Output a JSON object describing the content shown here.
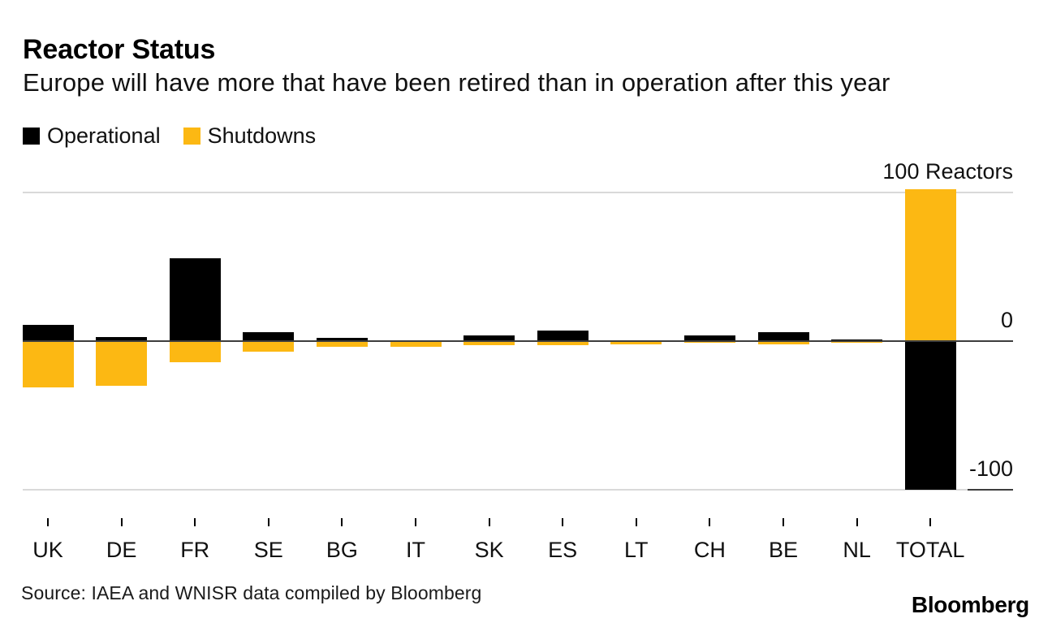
{
  "title": "Reactor Status",
  "subtitle": "Europe will have more that have been retired than in operation after this year",
  "legend": [
    {
      "label": "Operational",
      "color": "#000000"
    },
    {
      "label": "Shutdowns",
      "color": "#FCB813"
    }
  ],
  "source": "Source: IAEA and WNISR data compiled by Bloomberg",
  "logo": "Bloomberg",
  "colors": {
    "operational": "#000000",
    "shutdowns": "#FCB813",
    "gridline_light": "#D9D9D9",
    "gridline_dark": "#3D3D3D",
    "background": "#FFFFFF"
  },
  "chart_data": {
    "type": "bar",
    "layout": "diverging vertical bars around a zero line; for country columns Operational is drawn above zero and Shutdowns below; the TOTAL column is inverted (Shutdowns above, Operational below)",
    "title": "Reactor Status",
    "subtitle": "Europe will have more that have been retired than in operation after this year",
    "unit_label": "Reactors",
    "categories": [
      "UK",
      "DE",
      "FR",
      "SE",
      "BG",
      "IT",
      "SK",
      "ES",
      "LT",
      "CH",
      "BE",
      "NL",
      "TOTAL"
    ],
    "series": [
      {
        "name": "Operational",
        "color": "#000000",
        "values": [
          11,
          3,
          56,
          6,
          2,
          0,
          4,
          7,
          0,
          4,
          6,
          1,
          -100
        ],
        "sign_convention": "positive = bar drawn upward from zero, negative = drawn downward; TOTAL operational (~100) is drawn downward"
      },
      {
        "name": "Shutdowns",
        "color": "#FCB813",
        "values": [
          -31,
          -30,
          -14,
          -7,
          -4,
          -4,
          -3,
          -3,
          -2,
          -1,
          -2,
          -1,
          102
        ],
        "sign_convention": "positive = bar drawn upward from zero, negative = drawn downward; TOTAL shutdowns (~102) is drawn upward"
      }
    ],
    "yticks": [
      {
        "value": 100,
        "label": "100 Reactors",
        "line": "light"
      },
      {
        "value": 0,
        "label": "0",
        "line": "dark"
      },
      {
        "value": -100,
        "label": "-100",
        "line": "light",
        "edge_segment": true
      }
    ],
    "ylim": [
      -105,
      105
    ],
    "grid": "horizontal",
    "legend_position": "top-left"
  }
}
